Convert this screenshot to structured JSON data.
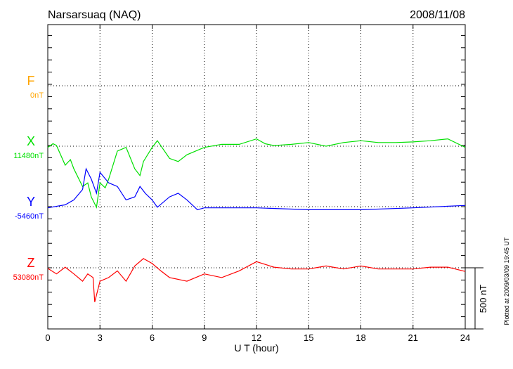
{
  "chart_data": {
    "type": "line",
    "title": "Narsarsuaq (NAQ)",
    "date": "2008/11/08",
    "xlabel": "U T (hour)",
    "xlim": [
      0,
      24
    ],
    "xticks": [
      "0",
      "3",
      "6",
      "9",
      "12",
      "15",
      "18",
      "21",
      "24"
    ],
    "scale_label": "500 nT",
    "scale_nT": 500,
    "plotted_note": "Plotted at 2009/03/09 19:45 UT",
    "grid": true,
    "series": [
      {
        "name": "F",
        "baseline_label": "0nT",
        "color": "#ffa500",
        "points": []
      },
      {
        "name": "X",
        "baseline_label": "11480nT",
        "color": "#00e000",
        "points": [
          [
            0,
            -10
          ],
          [
            0.3,
            20
          ],
          [
            0.5,
            6
          ],
          [
            1,
            -155
          ],
          [
            1.3,
            -110
          ],
          [
            1.5,
            -185
          ],
          [
            2,
            -330
          ],
          [
            2.3,
            -300
          ],
          [
            2.5,
            -415
          ],
          [
            2.8,
            -500
          ],
          [
            3,
            -300
          ],
          [
            3.3,
            -340
          ],
          [
            3.5,
            -270
          ],
          [
            4,
            -40
          ],
          [
            4.5,
            -10
          ],
          [
            5,
            -185
          ],
          [
            5.3,
            -240
          ],
          [
            5.5,
            -125
          ],
          [
            6,
            -10
          ],
          [
            6.3,
            45
          ],
          [
            7,
            -100
          ],
          [
            7.5,
            -125
          ],
          [
            8,
            -70
          ],
          [
            9,
            -10
          ],
          [
            10,
            15
          ],
          [
            11,
            15
          ],
          [
            12,
            60
          ],
          [
            12.5,
            20
          ],
          [
            13,
            5
          ],
          [
            14,
            15
          ],
          [
            15,
            30
          ],
          [
            16,
            0
          ],
          [
            17,
            30
          ],
          [
            18,
            45
          ],
          [
            19,
            30
          ],
          [
            20,
            30
          ],
          [
            21,
            35
          ],
          [
            22,
            45
          ],
          [
            23,
            60
          ],
          [
            24,
            -10
          ]
        ]
      },
      {
        "name": "Y",
        "baseline_label": "-5460nT",
        "color": "#0000ff",
        "points": [
          [
            0,
            -10
          ],
          [
            1,
            15
          ],
          [
            1.5,
            55
          ],
          [
            2,
            140
          ],
          [
            2.2,
            310
          ],
          [
            2.5,
            225
          ],
          [
            2.8,
            110
          ],
          [
            3,
            280
          ],
          [
            3.5,
            195
          ],
          [
            4,
            165
          ],
          [
            4.5,
            55
          ],
          [
            5,
            80
          ],
          [
            5.3,
            165
          ],
          [
            5.6,
            110
          ],
          [
            6,
            55
          ],
          [
            6.3,
            -5
          ],
          [
            7,
            80
          ],
          [
            7.5,
            110
          ],
          [
            8,
            55
          ],
          [
            8.6,
            -25
          ],
          [
            9,
            -10
          ],
          [
            12,
            -10
          ],
          [
            15,
            -25
          ],
          [
            18,
            -25
          ],
          [
            21,
            -10
          ],
          [
            24,
            10
          ]
        ]
      },
      {
        "name": "Z",
        "baseline_label": "53080nT",
        "color": "#ff0000",
        "points": [
          [
            0,
            -5
          ],
          [
            0.5,
            -50
          ],
          [
            1,
            5
          ],
          [
            1.5,
            -50
          ],
          [
            2,
            -110
          ],
          [
            2.3,
            -50
          ],
          [
            2.6,
            -80
          ],
          [
            2.7,
            -280
          ],
          [
            3,
            -110
          ],
          [
            3.5,
            -80
          ],
          [
            4,
            -25
          ],
          [
            4.5,
            -110
          ],
          [
            5,
            15
          ],
          [
            5.5,
            75
          ],
          [
            6,
            35
          ],
          [
            6.5,
            -25
          ],
          [
            7,
            -80
          ],
          [
            8,
            -110
          ],
          [
            9,
            -50
          ],
          [
            10,
            -80
          ],
          [
            11,
            -25
          ],
          [
            12,
            50
          ],
          [
            13,
            5
          ],
          [
            14,
            -10
          ],
          [
            15,
            -10
          ],
          [
            16,
            15
          ],
          [
            17,
            -10
          ],
          [
            18,
            15
          ],
          [
            19,
            -10
          ],
          [
            20,
            -10
          ],
          [
            21,
            -10
          ],
          [
            22,
            5
          ],
          [
            23,
            5
          ],
          [
            24,
            -30
          ]
        ]
      }
    ]
  }
}
